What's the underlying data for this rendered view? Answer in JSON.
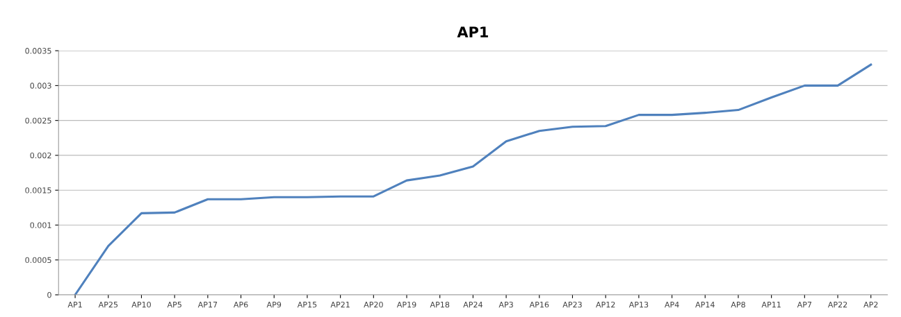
{
  "chart_data": {
    "type": "line",
    "title": "AP1",
    "categories": [
      "AP1",
      "AP25",
      "AP10",
      "AP5",
      "AP17",
      "AP6",
      "AP9",
      "AP15",
      "AP21",
      "AP20",
      "AP19",
      "AP18",
      "AP24",
      "AP3",
      "AP16",
      "AP23",
      "AP12",
      "AP13",
      "AP4",
      "AP14",
      "AP8",
      "AP11",
      "AP7",
      "AP22",
      "AP2"
    ],
    "series": [
      {
        "color": "#4f81bd",
        "values": [
          0,
          0.0007,
          0.00117,
          0.00118,
          0.00137,
          0.00137,
          0.0014,
          0.0014,
          0.00141,
          0.00141,
          0.00164,
          0.00171,
          0.00184,
          0.0022,
          0.00235,
          0.00241,
          0.00242,
          0.00258,
          0.00258,
          0.00261,
          0.00265,
          0.00283,
          0.003,
          0.003,
          0.0033
        ]
      }
    ],
    "ylim": [
      0,
      0.0035
    ],
    "yticks": [
      0,
      0.0005,
      0.001,
      0.0015,
      0.002,
      0.0025,
      0.003,
      0.0035
    ],
    "grid": "y",
    "marker": "none",
    "line_style": "solid"
  }
}
